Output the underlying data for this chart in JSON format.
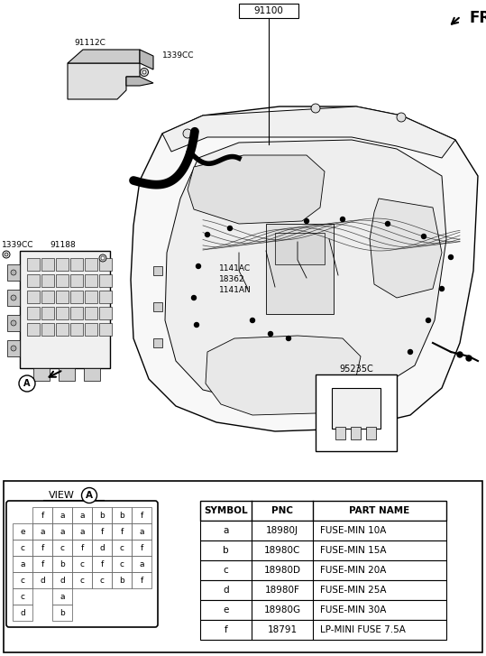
{
  "bg_color": "#ffffff",
  "table_header": [
    "SYMBOL",
    "PNC",
    "PART NAME"
  ],
  "table_rows": [
    [
      "a",
      "18980J",
      "FUSE-MIN 10A"
    ],
    [
      "b",
      "18980C",
      "FUSE-MIN 15A"
    ],
    [
      "c",
      "18980D",
      "FUSE-MIN 20A"
    ],
    [
      "d",
      "18980F",
      "FUSE-MIN 25A"
    ],
    [
      "e",
      "18980G",
      "FUSE-MIN 30A"
    ],
    [
      "f",
      "18791",
      "LP-MINI FUSE 7.5A"
    ]
  ],
  "fuse_grid": [
    [
      " ",
      "f",
      "a",
      "a",
      "b",
      "b",
      "f"
    ],
    [
      "e",
      "a",
      "a",
      "a",
      "f",
      "f",
      "a"
    ],
    [
      "c",
      "f",
      "c",
      "f",
      "d",
      "c",
      "f"
    ],
    [
      "a",
      "f",
      "b",
      "c",
      "f",
      "c",
      "a"
    ],
    [
      "c",
      "d",
      "d",
      "c",
      "c",
      "b",
      "f"
    ],
    [
      "c",
      " ",
      "a",
      " ",
      " ",
      " ",
      " "
    ],
    [
      "d",
      " ",
      "b",
      " ",
      " ",
      " ",
      " "
    ]
  ],
  "labels": {
    "fr": "FR.",
    "p91100": "91100",
    "p91112C": "91112C",
    "p1339CC_top": "1339CC",
    "p91188": "91188",
    "p1339CC_left": "1339CC",
    "p1141AC": "1141AC",
    "p18362": "18362",
    "p1141AN": "1141AN",
    "p95235C": "95235C",
    "view_a": "VIEW",
    "circle_a": "A"
  }
}
